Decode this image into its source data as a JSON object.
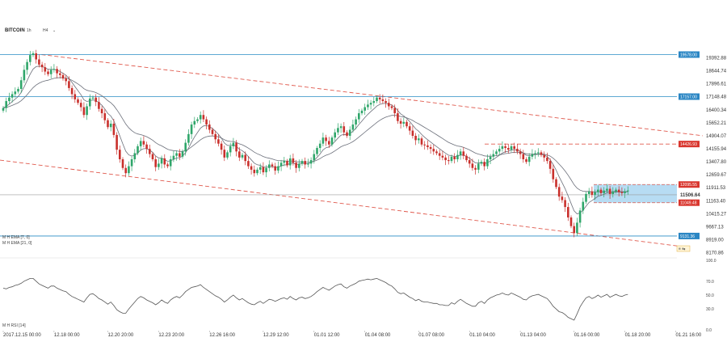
{
  "header": {
    "symbol": "BITCOIN",
    "interval": "1h",
    "timeframe": "H4",
    "dropdown_icon": "chevron-down-icon"
  },
  "legend": {
    "ema7": "M H EMA [7, 0]",
    "ema21": "M H EMA [21, 0]",
    "rsi": "M H RSI [14]"
  },
  "colors": {
    "up": "#2fa66a",
    "down": "#c9302c",
    "ema": "#6b6f7a",
    "hline": "#2a8cc4",
    "channel": "#e05a4e",
    "zone": "#9fd0ef",
    "red_flag": "#d9362e",
    "blue_flag": "#2a86c4",
    "rsi": "#555555",
    "grid": "#e8e8e8"
  },
  "chart_data": {
    "type": "candlestick",
    "ylim": [
      8170.86,
      20300
    ],
    "price_ticks": [
      19392.88,
      18644.74,
      17896.61,
      17148.48,
      16400.34,
      15652.21,
      14904.07,
      14155.94,
      13407.8,
      12659.67,
      11911.53,
      11163.4,
      10415.27,
      9667.13,
      8919.0,
      8170.86
    ],
    "time_labels": [
      "2017.12.15 00:00",
      "12.18 00:00",
      "12.20 20:00",
      "12.23 20:00",
      "12.26 16:00",
      "12.29 12:00",
      "01.01 12:00",
      "01.04 08:00",
      "01.07 08:00",
      "01.10 04:00",
      "01.13 04:00",
      "01.16 00:00",
      "01.18 20:00",
      "01.21 16:00"
    ],
    "time_label_ticks": [
      0,
      17,
      35,
      52,
      69,
      87,
      104,
      121,
      139,
      156,
      173,
      191,
      208,
      225
    ],
    "closes": [
      16500,
      16900,
      17100,
      17300,
      17450,
      17600,
      18100,
      18700,
      19150,
      19550,
      19650,
      19300,
      19000,
      18850,
      18600,
      18450,
      18700,
      18750,
      18500,
      18400,
      18200,
      18050,
      17650,
      17300,
      17000,
      16800,
      16550,
      16100,
      16600,
      17050,
      17100,
      16850,
      16450,
      16200,
      15800,
      15400,
      15600,
      14950,
      14100,
      13550,
      13050,
      12750,
      13150,
      13550,
      13900,
      14300,
      14600,
      14400,
      14150,
      13850,
      13550,
      13100,
      13300,
      13600,
      13250,
      13150,
      13550,
      13750,
      13900,
      13700,
      14000,
      14500,
      15000,
      15550,
      15750,
      15850,
      16100,
      15850,
      15550,
      15250,
      15000,
      14700,
      14450,
      14100,
      13650,
      13950,
      14300,
      14500,
      14000,
      13650,
      13800,
      13450,
      13150,
      12950,
      12750,
      12950,
      13100,
      12800,
      13050,
      13250,
      13150,
      12900,
      13150,
      13350,
      13450,
      13200,
      13600,
      13350,
      13050,
      13300,
      13450,
      13250,
      13300,
      13500,
      13850,
      14200,
      14450,
      14800,
      14600,
      14400,
      14800,
      15100,
      15350,
      15450,
      15100,
      14900,
      15250,
      15550,
      15850,
      16200,
      16350,
      16550,
      16700,
      16800,
      16900,
      17100,
      17000,
      16900,
      16800,
      16600,
      16500,
      16200,
      15750,
      15600,
      15700,
      15450,
      15200,
      14900,
      14650,
      14750,
      14400,
      14350,
      14250,
      14150,
      14000,
      13900,
      13750,
      13650,
      13500,
      13450,
      13700,
      13550,
      13800,
      14000,
      13750,
      13500,
      13300,
      13050,
      12950,
      13300,
      13400,
      13150,
      13550,
      13700,
      13850,
      14000,
      14150,
      14300,
      14200,
      14100,
      14300,
      14150,
      14000,
      13850,
      13550,
      13400,
      13700,
      13850,
      13900,
      13950,
      13800,
      13650,
      13450,
      13000,
      12400,
      11950,
      11400,
      11200,
      10800,
      10200,
      9700,
      9300,
      9900,
      10600,
      11100,
      11550,
      11700,
      11500,
      11650,
      11800,
      11600,
      11750,
      11850,
      11550,
      11700,
      11800,
      11650,
      11600,
      11700,
      11750
    ],
    "candle_count": 210,
    "rsi": {
      "ylim": [
        0,
        100
      ],
      "ticks": [
        100.0,
        70.0,
        50.0,
        30.0,
        0.0
      ],
      "values": [
        60,
        59,
        61,
        62,
        64,
        65,
        67,
        70,
        72,
        74,
        74,
        70,
        66,
        64,
        62,
        60,
        63,
        63,
        60,
        58,
        56,
        55,
        51,
        48,
        46,
        44,
        42,
        40,
        46,
        51,
        52,
        49,
        45,
        43,
        40,
        37,
        40,
        35,
        29,
        26,
        24,
        24,
        30,
        35,
        40,
        45,
        48,
        46,
        43,
        41,
        39,
        36,
        39,
        43,
        40,
        38,
        43,
        46,
        48,
        46,
        50,
        55,
        58,
        61,
        62,
        63,
        65,
        61,
        58,
        55,
        52,
        49,
        47,
        44,
        40,
        43,
        47,
        50,
        46,
        43,
        45,
        42,
        39,
        37,
        36,
        39,
        41,
        38,
        41,
        44,
        43,
        41,
        43,
        45,
        46,
        44,
        48,
        45,
        43,
        46,
        47,
        45,
        46,
        48,
        51,
        55,
        58,
        61,
        59,
        57,
        60,
        63,
        65,
        66,
        62,
        60,
        63,
        65,
        67,
        70,
        71,
        72,
        73,
        72,
        73,
        74,
        72,
        70,
        68,
        65,
        63,
        59,
        54,
        52,
        53,
        50,
        47,
        45,
        42,
        44,
        41,
        40,
        40,
        39,
        38,
        38,
        36,
        36,
        35,
        35,
        39,
        37,
        41,
        44,
        41,
        38,
        36,
        34,
        34,
        39,
        41,
        38,
        43,
        46,
        48,
        50,
        51,
        53,
        51,
        50,
        53,
        51,
        49,
        47,
        44,
        43,
        47,
        49,
        50,
        51,
        49,
        47,
        45,
        40,
        34,
        30,
        26,
        25,
        22,
        18,
        16,
        14,
        23,
        33,
        40,
        46,
        48,
        45,
        47,
        50,
        47,
        49,
        51,
        47,
        49,
        51,
        49,
        48,
        50,
        51
      ]
    },
    "horizontal_levels": [
      {
        "value": 19578.0,
        "label": "19578.00",
        "style": "blue"
      },
      {
        "value": 17157.0,
        "label": "17157.00",
        "style": "blue"
      },
      {
        "value": 9131.36,
        "label": "9131.36",
        "style": "blue"
      },
      {
        "value": 14426.93,
        "label": "14426.93",
        "style": "red-dashed"
      },
      {
        "value": 12095.55,
        "label": "12095.55",
        "style": "red-flag"
      },
      {
        "value": 11049.48,
        "label": "11049.48",
        "style": "red-flag"
      },
      {
        "value": 11506.64,
        "label": "11506.64",
        "style": "gray"
      }
    ],
    "zone": {
      "top": 12095.55,
      "bottom": 11049.48
    },
    "channel_upper": {
      "from": [
        2,
        19578
      ],
      "to": [
        229,
        14904
      ]
    },
    "channel_lower": {
      "from": [
        0,
        13500
      ],
      "to": [
        229,
        8550
      ]
    },
    "grid": false
  }
}
